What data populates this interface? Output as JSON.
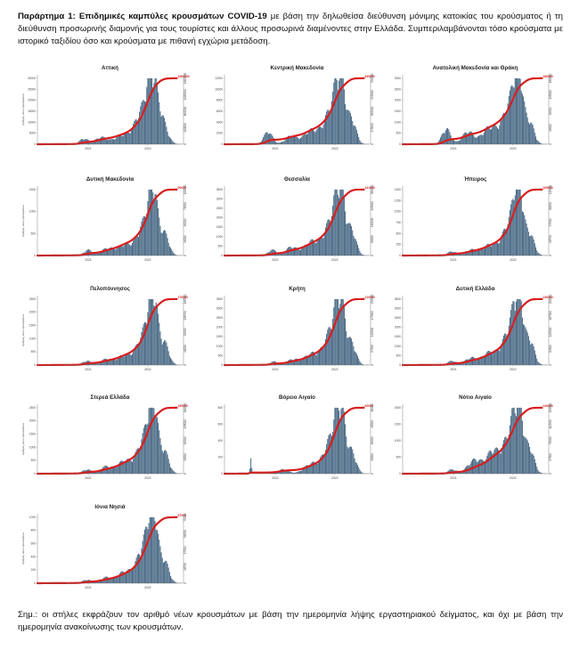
{
  "heading": {
    "prefix": "Παράρτημα 1:",
    "bold_title": "Επιδημικές καμπύλες κρουσμάτων COVID-19",
    "text": " με βάση την δηλωθείσα διεύθυνση μόνιμης κατοικίας του κρούσματος ή τη διεύθυνση προσωρινής διαμονής για τους τουρίστες και άλλους προσωρινά διαμένοντες στην Ελλάδα. Συμπεριλαμβάνονται τόσο κρούσματα με ιστορικό ταξιδίου όσο και κρούσματα με πιθανή εγχώρια μετάδοση."
  },
  "footer": {
    "text": "Σημ.: οι στήλες εκφράζουν τον αριθμό νέων κρουσμάτων με βάση την ημερομηνία λήψης εργαστηριακού δείγματος, και όχι με βάση την ημερομηνία ανακοίνωσης των κρουσμάτων."
  },
  "colors": {
    "bars": "#4a6a86",
    "cumulative_line": "#d81e1e"
  },
  "chart_data": [
    {
      "type": "bar",
      "title": "Αττική",
      "x_ticks": [
        "2021",
        "2022"
      ],
      "y_ticks": [
        "0",
        "5000",
        "10000",
        "15000",
        "20000",
        "25000",
        "30000"
      ],
      "ylim": [
        0,
        30000
      ],
      "end_label": "1564000",
      "y2_max": 1600000,
      "ylabel": "Αριθμός νέων κρουσμάτων",
      "humps": [
        [
          0.32,
          0.03,
          0.08
        ],
        [
          0.44,
          0.04,
          0.1
        ],
        [
          0.58,
          0.05,
          0.12
        ],
        [
          0.74,
          0.06,
          0.55
        ],
        [
          0.79,
          0.025,
          0.85
        ],
        [
          0.85,
          0.04,
          0.38
        ]
      ]
    },
    {
      "type": "bar",
      "title": "Κεντρική Μακεδονία",
      "x_ticks": [
        "2021",
        "2022"
      ],
      "y_ticks": [
        "0",
        "2000",
        "4000",
        "6000",
        "8000",
        "10000",
        "12000"
      ],
      "ylim": [
        0,
        12000
      ],
      "end_label": "649000",
      "y2_max": 700000,
      "ylabel": "",
      "humps": [
        [
          0.3,
          0.03,
          0.18
        ],
        [
          0.46,
          0.04,
          0.12
        ],
        [
          0.6,
          0.05,
          0.2
        ],
        [
          0.74,
          0.05,
          0.5
        ],
        [
          0.8,
          0.03,
          0.95
        ],
        [
          0.88,
          0.03,
          0.35
        ]
      ]
    },
    {
      "type": "bar",
      "title": "Ανατολική Μακεδονία και Θράκη",
      "x_ticks": [
        "2021",
        "2022"
      ],
      "y_ticks": [
        "0",
        "500",
        "1000",
        "1500",
        "2000",
        "2500",
        "3000"
      ],
      "ylim": [
        0,
        3000
      ],
      "end_label": "160000",
      "y2_max": 180000,
      "ylabel": "",
      "humps": [
        [
          0.3,
          0.03,
          0.22
        ],
        [
          0.45,
          0.04,
          0.18
        ],
        [
          0.6,
          0.05,
          0.24
        ],
        [
          0.74,
          0.05,
          0.55
        ],
        [
          0.8,
          0.03,
          0.95
        ],
        [
          0.88,
          0.03,
          0.3
        ]
      ]
    },
    {
      "type": "bar",
      "title": "Δυτική Μακεδονία",
      "x_ticks": [
        "2021",
        "2022"
      ],
      "y_ticks": [
        "0",
        "500",
        "1000",
        "1500"
      ],
      "ylim": [
        0,
        1500
      ],
      "end_label": "90000",
      "y2_max": 100000,
      "ylabel": "Αριθμός νέων κρουσμάτων",
      "humps": [
        [
          0.35,
          0.03,
          0.08
        ],
        [
          0.48,
          0.04,
          0.1
        ],
        [
          0.6,
          0.05,
          0.15
        ],
        [
          0.74,
          0.05,
          0.45
        ],
        [
          0.8,
          0.03,
          0.85
        ],
        [
          0.88,
          0.03,
          0.3
        ]
      ]
    },
    {
      "type": "bar",
      "title": "Θεσσαλία",
      "x_ticks": [
        "2021",
        "2022"
      ],
      "y_ticks": [
        "0",
        "500",
        "1000",
        "1500",
        "2000",
        "2500",
        "3000",
        "3500"
      ],
      "ylim": [
        0,
        3500
      ],
      "end_label": "241000",
      "y2_max": 260000,
      "ylabel": "",
      "humps": [
        [
          0.33,
          0.03,
          0.08
        ],
        [
          0.46,
          0.04,
          0.12
        ],
        [
          0.6,
          0.05,
          0.2
        ],
        [
          0.74,
          0.05,
          0.5
        ],
        [
          0.8,
          0.03,
          0.95
        ],
        [
          0.88,
          0.03,
          0.35
        ]
      ]
    },
    {
      "type": "bar",
      "title": "Ήπειρος",
      "x_ticks": [
        "2021",
        "2022"
      ],
      "y_ticks": [
        "0",
        "250",
        "500",
        "750",
        "1000",
        "1250",
        "1500"
      ],
      "ylim": [
        0,
        1500
      ],
      "end_label": "105000",
      "y2_max": 115000,
      "ylabel": "",
      "humps": [
        [
          0.34,
          0.03,
          0.06
        ],
        [
          0.47,
          0.04,
          0.08
        ],
        [
          0.6,
          0.05,
          0.15
        ],
        [
          0.74,
          0.05,
          0.45
        ],
        [
          0.8,
          0.03,
          0.95
        ],
        [
          0.88,
          0.03,
          0.3
        ]
      ]
    },
    {
      "type": "bar",
      "title": "Πελοπόννησος",
      "x_ticks": [
        "2021",
        "2022"
      ],
      "y_ticks": [
        "0",
        "500",
        "1000",
        "1500",
        "2000",
        "2500"
      ],
      "ylim": [
        0,
        2500
      ],
      "end_label": "170000",
      "y2_max": 185000,
      "ylabel": "Αριθμός νέων κρουσμάτων",
      "humps": [
        [
          0.34,
          0.03,
          0.06
        ],
        [
          0.47,
          0.04,
          0.08
        ],
        [
          0.6,
          0.05,
          0.14
        ],
        [
          0.74,
          0.05,
          0.45
        ],
        [
          0.8,
          0.03,
          0.95
        ],
        [
          0.88,
          0.03,
          0.3
        ]
      ]
    },
    {
      "type": "bar",
      "title": "Κρήτη",
      "x_ticks": [
        "2021",
        "2022"
      ],
      "y_ticks": [
        "0",
        "500",
        "1000",
        "1500",
        "2000",
        "2500",
        "3000",
        "3500"
      ],
      "ylim": [
        0,
        3500
      ],
      "end_label": "210000",
      "y2_max": 230000,
      "ylabel": "",
      "humps": [
        [
          0.34,
          0.03,
          0.05
        ],
        [
          0.47,
          0.04,
          0.08
        ],
        [
          0.6,
          0.05,
          0.16
        ],
        [
          0.74,
          0.05,
          0.5
        ],
        [
          0.8,
          0.03,
          0.95
        ],
        [
          0.88,
          0.03,
          0.3
        ]
      ]
    },
    {
      "type": "bar",
      "title": "Δυτική Ελλάδα",
      "x_ticks": [
        "2021",
        "2022"
      ],
      "y_ticks": [
        "0",
        "500",
        "1000",
        "1500",
        "2000",
        "2500",
        "3000",
        "3500"
      ],
      "ylim": [
        0,
        3500
      ],
      "end_label": "230000",
      "y2_max": 250000,
      "ylabel": "",
      "humps": [
        [
          0.34,
          0.03,
          0.06
        ],
        [
          0.47,
          0.04,
          0.1
        ],
        [
          0.6,
          0.05,
          0.18
        ],
        [
          0.74,
          0.05,
          0.5
        ],
        [
          0.8,
          0.03,
          0.95
        ],
        [
          0.88,
          0.03,
          0.35
        ]
      ]
    },
    {
      "type": "bar",
      "title": "Στερεά Ελλάδα",
      "x_ticks": [
        "2021",
        "2022"
      ],
      "y_ticks": [
        "0",
        "500",
        "1000",
        "1500",
        "2000",
        "2500"
      ],
      "ylim": [
        0,
        2500
      ],
      "end_label": "165000",
      "y2_max": 180000,
      "ylabel": "Αριθμός νέων κρουσμάτων",
      "humps": [
        [
          0.34,
          0.03,
          0.06
        ],
        [
          0.47,
          0.04,
          0.1
        ],
        [
          0.6,
          0.05,
          0.18
        ],
        [
          0.74,
          0.05,
          0.5
        ],
        [
          0.8,
          0.03,
          0.95
        ],
        [
          0.88,
          0.03,
          0.3
        ]
      ]
    },
    {
      "type": "bar",
      "title": "Βόρειο Αιγαίο",
      "x_ticks": [
        "2021",
        "2022"
      ],
      "y_ticks": [
        "0",
        "200",
        "400",
        "600",
        "800"
      ],
      "ylim": [
        0,
        800
      ],
      "end_label": "52000",
      "y2_max": 60000,
      "ylabel": "",
      "humps": [
        [
          0.18,
          0.005,
          0.2
        ],
        [
          0.4,
          0.04,
          0.06
        ],
        [
          0.6,
          0.05,
          0.14
        ],
        [
          0.74,
          0.05,
          0.5
        ],
        [
          0.8,
          0.03,
          0.95
        ],
        [
          0.88,
          0.03,
          0.3
        ]
      ]
    },
    {
      "type": "bar",
      "title": "Νότιο Αιγαίο",
      "x_ticks": [
        "2021",
        "2022"
      ],
      "y_ticks": [
        "0",
        "500",
        "1000",
        "1500",
        "2000"
      ],
      "ylim": [
        0,
        2000
      ],
      "end_label": "140000",
      "y2_max": 150000,
      "ylabel": "",
      "humps": [
        [
          0.34,
          0.03,
          0.06
        ],
        [
          0.5,
          0.05,
          0.2
        ],
        [
          0.62,
          0.04,
          0.3
        ],
        [
          0.74,
          0.05,
          0.55
        ],
        [
          0.8,
          0.03,
          0.95
        ],
        [
          0.88,
          0.03,
          0.35
        ]
      ]
    },
    {
      "type": "bar",
      "title": "Ιόνια Νησιά",
      "x_ticks": [
        "2021",
        "2022"
      ],
      "y_ticks": [
        "0",
        "200",
        "400",
        "600",
        "800",
        "1000"
      ],
      "ylim": [
        0,
        1000
      ],
      "end_label": "67000",
      "y2_max": 75000,
      "ylabel": "Αριθμός νέων κρουσμάτων",
      "humps": [
        [
          0.34,
          0.03,
          0.05
        ],
        [
          0.47,
          0.04,
          0.08
        ],
        [
          0.6,
          0.05,
          0.16
        ],
        [
          0.74,
          0.05,
          0.55
        ],
        [
          0.8,
          0.03,
          0.95
        ],
        [
          0.88,
          0.03,
          0.3
        ]
      ]
    }
  ]
}
